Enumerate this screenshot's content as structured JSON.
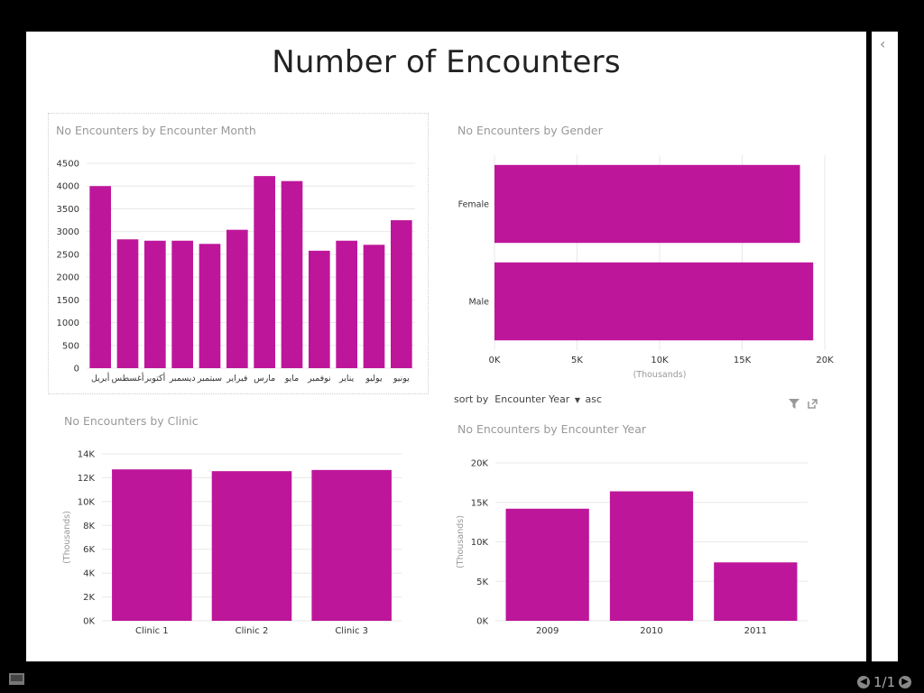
{
  "report": {
    "title": "Number of Encounters",
    "page_indicator": "1/1"
  },
  "sort": {
    "prefix": "sort by",
    "field": "Encounter Year",
    "direction": "asc"
  },
  "colors": {
    "bar": "#BE169A",
    "grid": "#e8e8e8",
    "axis_text": "#333333",
    "secondary_text": "#999999"
  },
  "icons": {
    "filter": "filter-icon",
    "popout": "popout-icon",
    "collapse": "chevron-left-icon",
    "prev": "prev-page-icon",
    "next": "next-page-icon",
    "pages": "page-navigator-icon"
  },
  "chart_data": [
    {
      "type": "bar",
      "title": "No Encounters by Encounter Month",
      "categories": [
        "أبريل",
        "أغسطس",
        "أكتوبر",
        "ديسمبر",
        "سبتمبر",
        "فبراير",
        "مارس",
        "مايو",
        "نوفمبر",
        "يناير",
        "يوليو",
        "يونيو"
      ],
      "values": [
        4000,
        2830,
        2800,
        2800,
        2730,
        3040,
        4220,
        4110,
        2580,
        2800,
        2710,
        3250
      ],
      "y_ticks": [
        "0",
        "500",
        "1000",
        "1500",
        "2000",
        "2500",
        "3000",
        "3500",
        "4000",
        "4500"
      ],
      "ylim": [
        0,
        4500
      ],
      "grid": true
    },
    {
      "type": "bar",
      "orientation": "horizontal",
      "title": "No Encounters by Gender",
      "categories": [
        "Female",
        "Male"
      ],
      "values": [
        18500,
        19300
      ],
      "x_ticks": [
        "0K",
        "5K",
        "10K",
        "15K",
        "20K"
      ],
      "xlim": [
        0,
        20000
      ],
      "xlabel": "(Thousands)",
      "grid": true
    },
    {
      "type": "bar",
      "title": "No Encounters by Clinic",
      "categories": [
        "Clinic 1",
        "Clinic 2",
        "Clinic 3"
      ],
      "values": [
        12700,
        12550,
        12650
      ],
      "y_ticks": [
        "0K",
        "2K",
        "4K",
        "6K",
        "8K",
        "10K",
        "12K",
        "14K"
      ],
      "ylim": [
        0,
        14000
      ],
      "ylabel": "(Thousands)",
      "grid": true
    },
    {
      "type": "bar",
      "title": "No Encounters by Encounter Year",
      "categories": [
        "2009",
        "2010",
        "2011"
      ],
      "values": [
        14200,
        16400,
        7400
      ],
      "y_ticks": [
        "0K",
        "5K",
        "10K",
        "15K",
        "20K"
      ],
      "ylim": [
        0,
        20000
      ],
      "ylabel": "(Thousands)",
      "grid": true
    }
  ]
}
